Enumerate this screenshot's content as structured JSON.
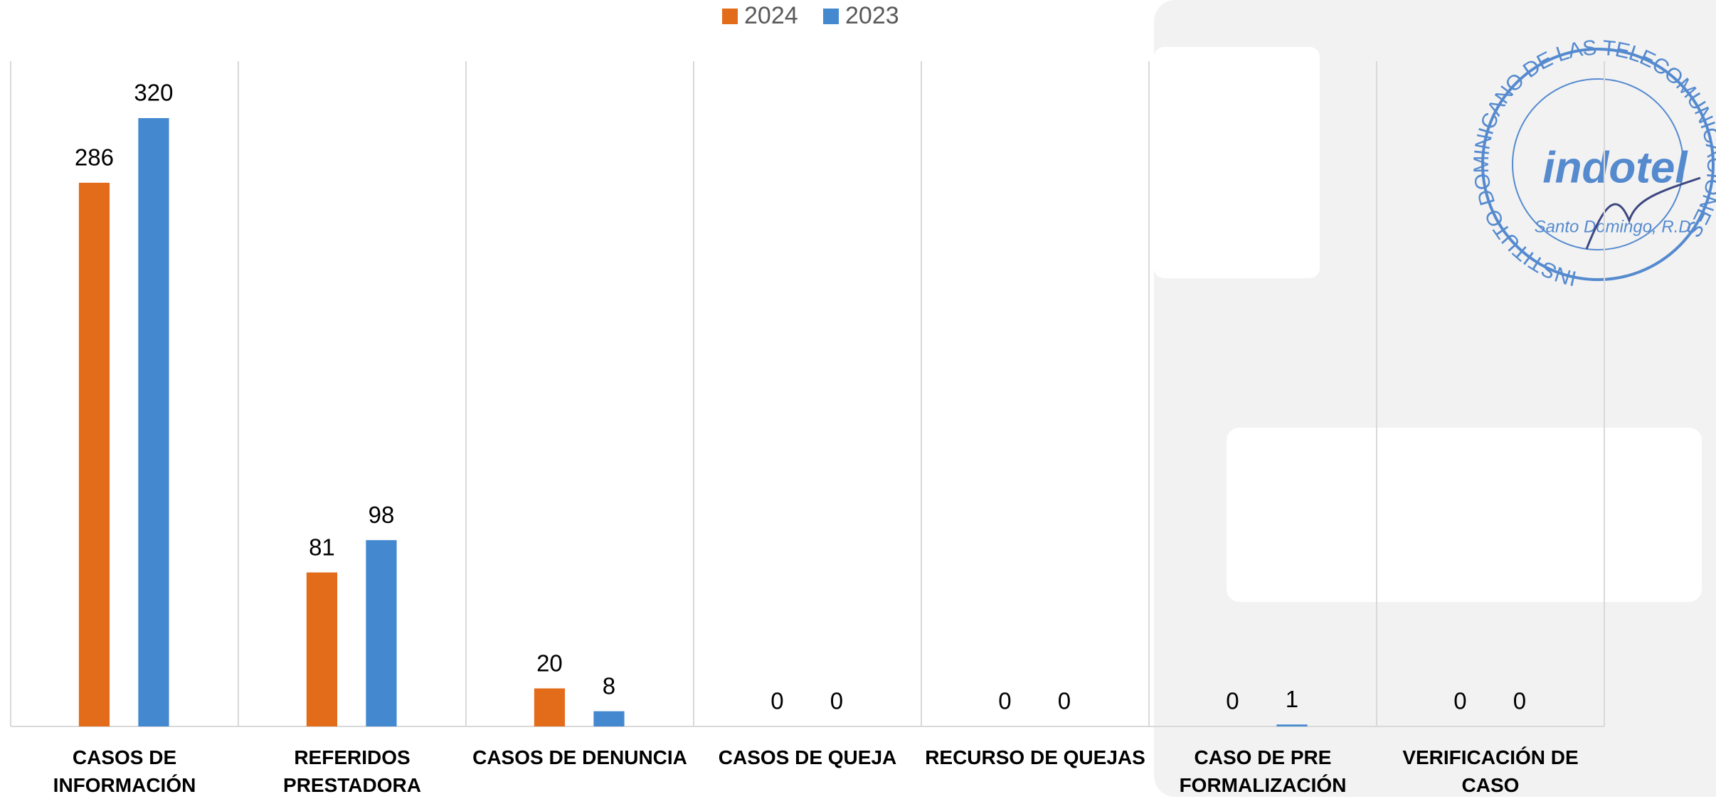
{
  "chart_data": {
    "type": "bar",
    "categories": [
      "CASOS DE\nINFORMACIÓN",
      "REFERIDOS\nPRESTADORA",
      "CASOS DE DENUNCIA",
      "CASOS DE QUEJA",
      "RECURSO DE QUEJAS",
      "CASO DE PRE\nFORMALIZACIÓN",
      "VERIFICACIÓN DE CASO"
    ],
    "series": [
      {
        "name": "2024",
        "color": "#e36c1a",
        "values": [
          286,
          81,
          20,
          0,
          0,
          0,
          0
        ]
      },
      {
        "name": "2023",
        "color": "#4489d0",
        "values": [
          320,
          98,
          8,
          0,
          0,
          1,
          0
        ]
      }
    ],
    "legend": "top",
    "grid": "vertical"
  },
  "stamp": {
    "ring": "INSTITUTO DOMINICANO DE LAS TELECOMUNICACIONES",
    "logo": "indotel",
    "city": "Santo Domingo, R.D."
  }
}
